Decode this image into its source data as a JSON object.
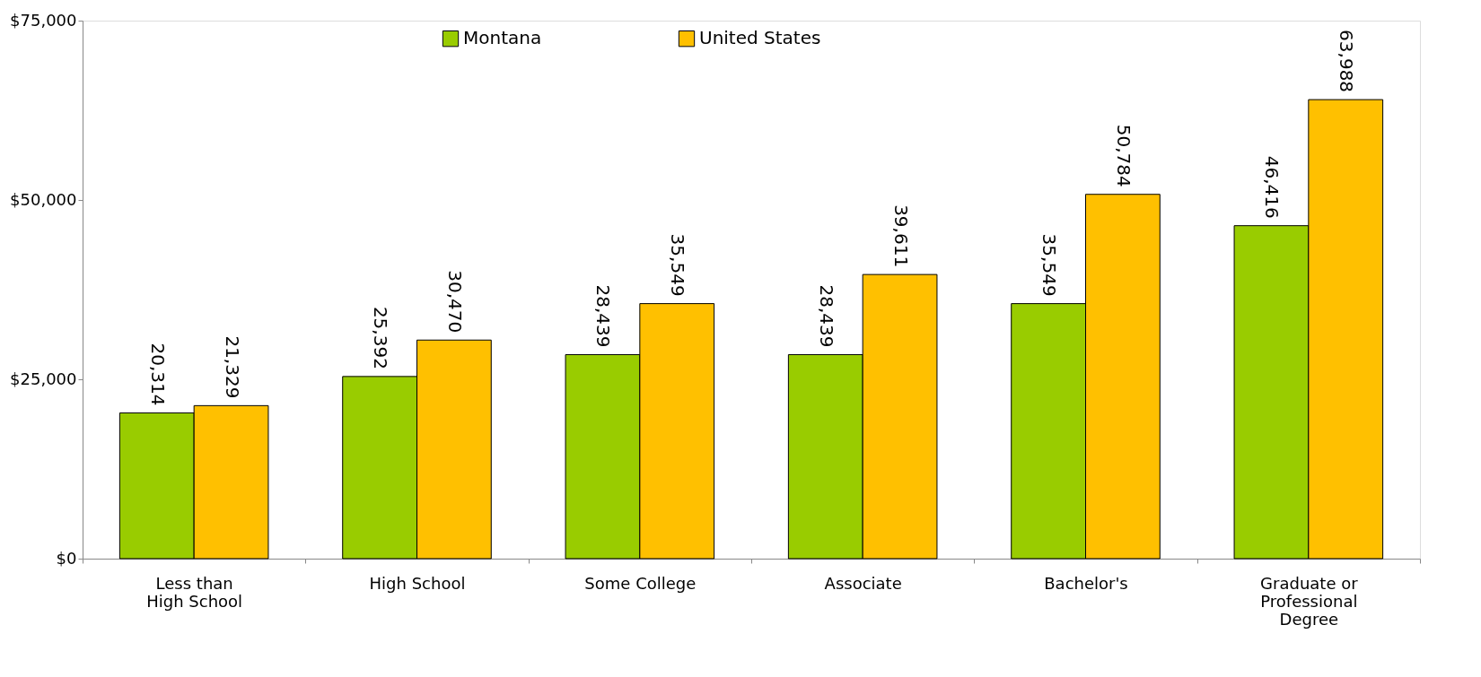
{
  "chart_data": {
    "type": "bar",
    "categories": [
      "Less than\nHigh School",
      "High School",
      "Some College",
      "Associate",
      "Bachelor's",
      "Graduate or\nProfessional\nDegree"
    ],
    "series": [
      {
        "name": "Montana",
        "color": "#99cc00",
        "values": [
          20314,
          25392,
          28439,
          28439,
          35549,
          46416
        ],
        "value_labels": [
          "20,314",
          "25,392",
          "28,439",
          "28,439",
          "35,549",
          "46,416"
        ]
      },
      {
        "name": "United States",
        "color": "#ffc000",
        "values": [
          21329,
          30470,
          35549,
          39611,
          50784,
          63988
        ],
        "value_labels": [
          "21,329",
          "30,470",
          "35,549",
          "39,611",
          "50,784",
          "63,988"
        ]
      }
    ],
    "ylim": [
      0,
      75000
    ],
    "yticks": [
      {
        "value": 0,
        "label": "$0"
      },
      {
        "value": 25000,
        "label": "$25,000"
      },
      {
        "value": 50000,
        "label": "$50,000"
      },
      {
        "value": 75000,
        "label": "$75,000"
      }
    ],
    "grid": false,
    "legend": "top"
  }
}
